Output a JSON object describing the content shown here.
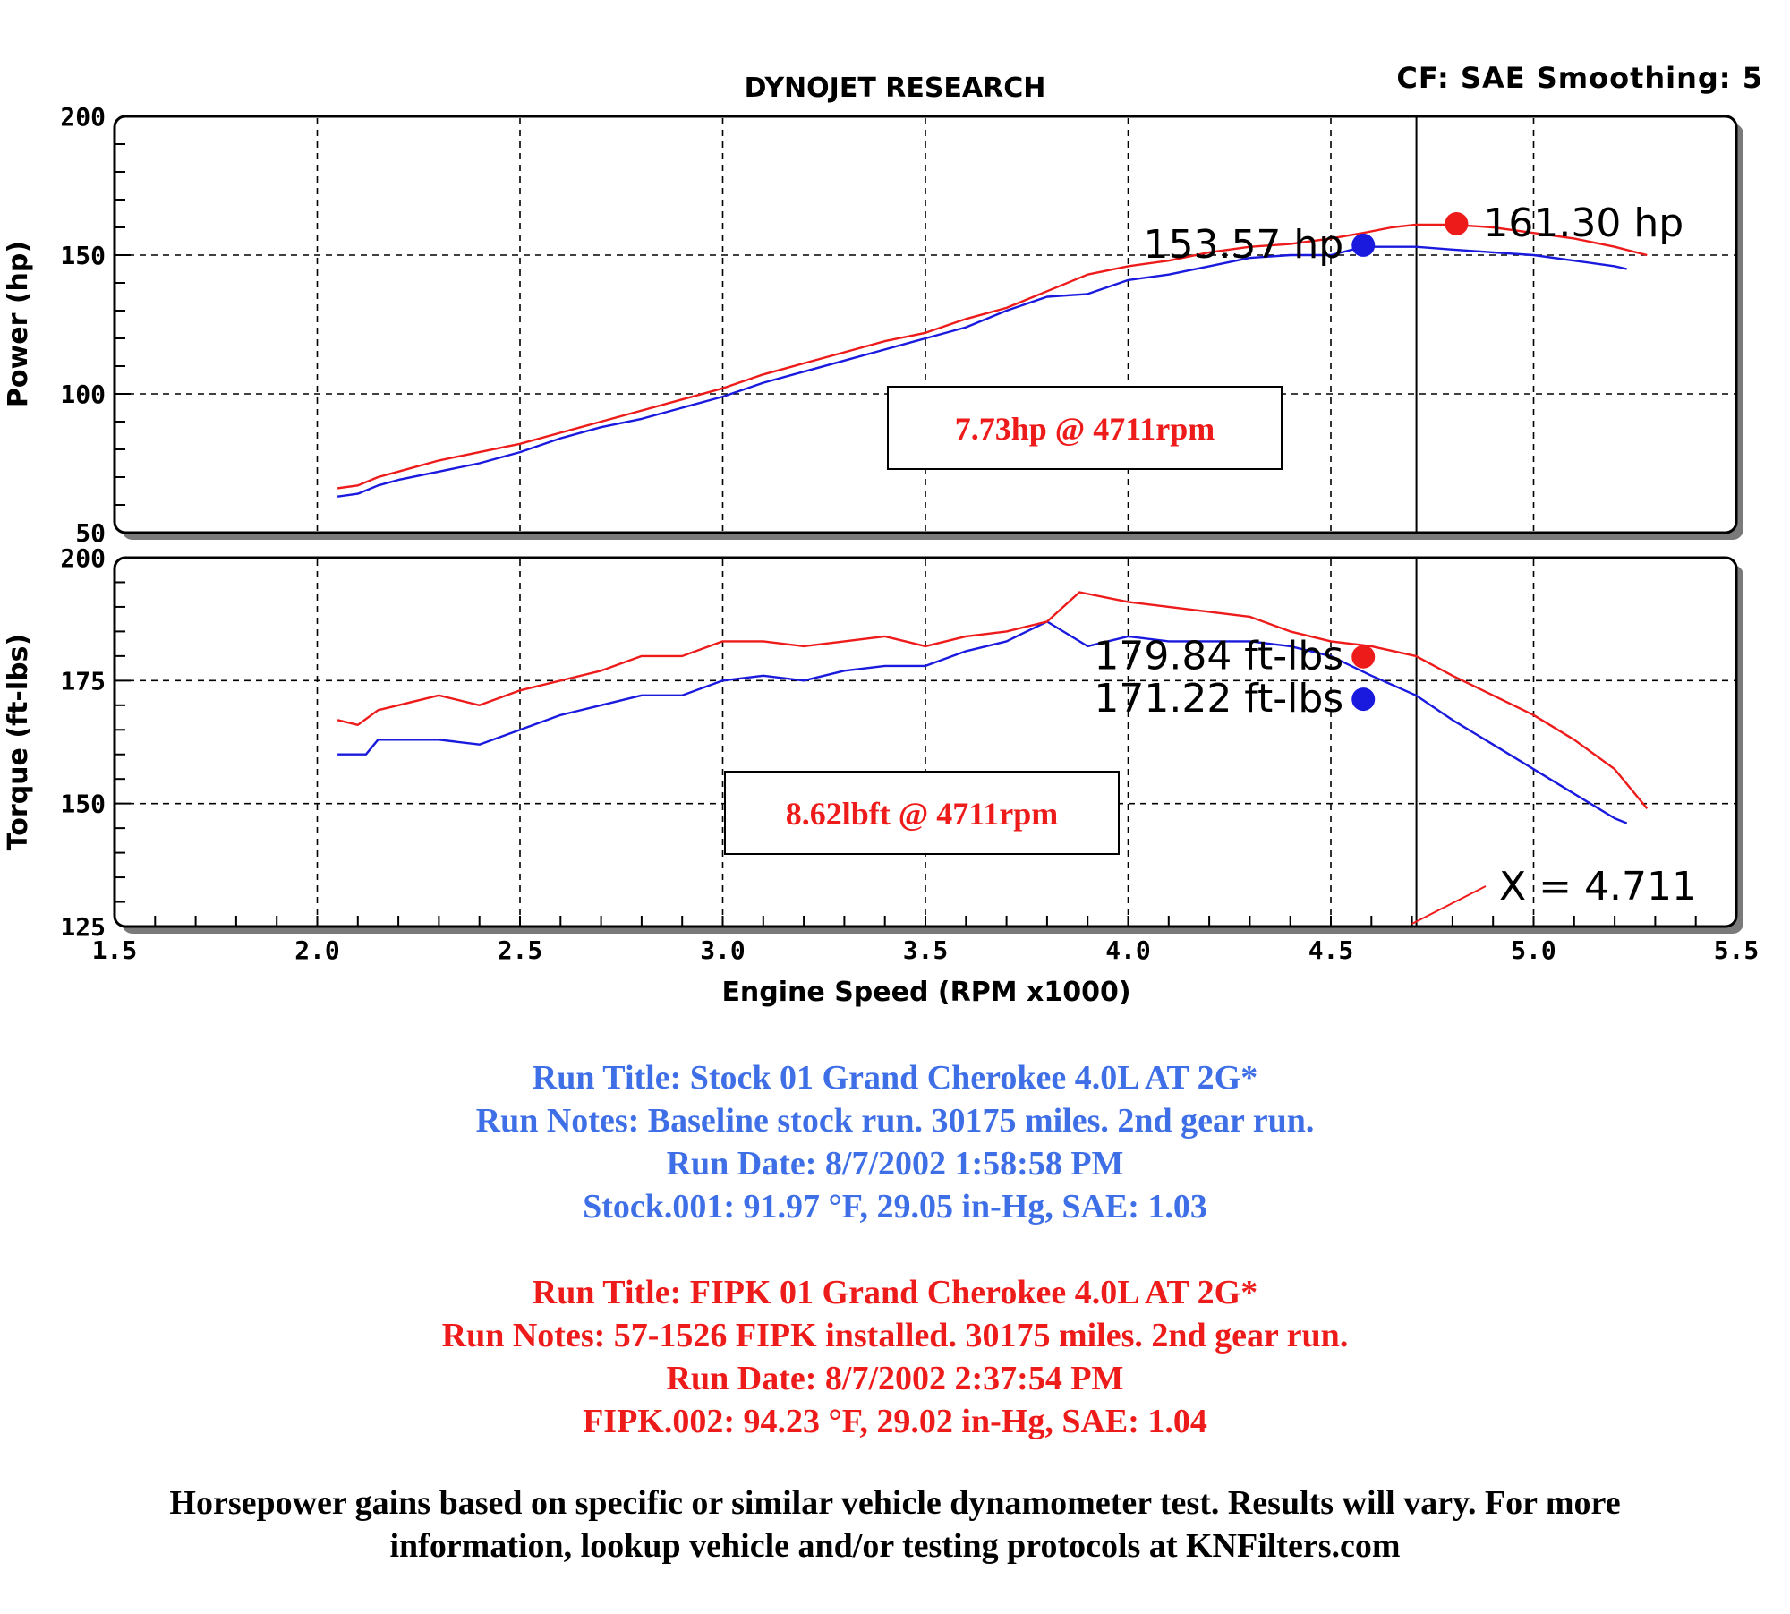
{
  "header": {
    "title": "DYNOJET RESEARCH",
    "cf_smoothing": "CF: SAE  Smoothing: 5"
  },
  "colors": {
    "stock": "#1a1adf",
    "fipk": "#ee1b1b",
    "blue_text": "#3f6fe6",
    "red_text": "#ee1b1b"
  },
  "chart_data": [
    {
      "type": "line",
      "name": "power",
      "ylabel": "Power (hp)",
      "xlim": [
        1.5,
        5.5
      ],
      "ylim": [
        50,
        200
      ],
      "yticks": [
        50,
        100,
        150,
        200
      ],
      "grid": true,
      "series": [
        {
          "name": "Stock",
          "color": "#1a1adf",
          "x": [
            2.05,
            2.1,
            2.15,
            2.2,
            2.3,
            2.4,
            2.5,
            2.6,
            2.7,
            2.8,
            2.9,
            3.0,
            3.1,
            3.2,
            3.3,
            3.4,
            3.5,
            3.6,
            3.7,
            3.8,
            3.9,
            4.0,
            4.1,
            4.2,
            4.3,
            4.4,
            4.5,
            4.58,
            4.65,
            4.71,
            4.8,
            4.9,
            5.0,
            5.1,
            5.2,
            5.23
          ],
          "y": [
            63,
            64,
            67,
            69,
            72,
            75,
            79,
            84,
            88,
            91,
            95,
            99,
            104,
            108,
            112,
            116,
            120,
            124,
            130,
            135,
            136,
            141,
            143,
            146,
            149,
            150,
            150,
            153,
            153,
            153,
            152,
            151,
            150,
            148,
            146,
            145
          ]
        },
        {
          "name": "FIPK",
          "color": "#ee1b1b",
          "x": [
            2.05,
            2.1,
            2.15,
            2.2,
            2.3,
            2.4,
            2.5,
            2.6,
            2.7,
            2.8,
            2.9,
            3.0,
            3.1,
            3.2,
            3.3,
            3.4,
            3.5,
            3.6,
            3.7,
            3.8,
            3.9,
            4.0,
            4.1,
            4.2,
            4.3,
            4.4,
            4.5,
            4.58,
            4.65,
            4.71,
            4.8,
            4.9,
            5.0,
            5.1,
            5.2,
            5.28
          ],
          "y": [
            66,
            67,
            70,
            72,
            76,
            79,
            82,
            86,
            90,
            94,
            98,
            102,
            107,
            111,
            115,
            119,
            122,
            127,
            131,
            137,
            143,
            146,
            148,
            151,
            153,
            154,
            156,
            158,
            160,
            161,
            161,
            160,
            158,
            156,
            153,
            150
          ]
        }
      ],
      "markers": [
        {
          "label": "153.57 hp",
          "x": 4.58,
          "y": 153.57,
          "color": "#1a1adf"
        },
        {
          "label": "161.30 hp",
          "x": 4.81,
          "y": 161.3,
          "color": "#ee1b1b"
        }
      ],
      "gain_box": "7.73hp @ 4711rpm"
    },
    {
      "type": "line",
      "name": "torque",
      "xlabel": "Engine Speed (RPM x1000)",
      "ylabel": "Torque (ft-lbs)",
      "xlim": [
        1.5,
        5.5
      ],
      "ylim": [
        125,
        200
      ],
      "xticks": [
        "1.5",
        "2.0",
        "2.5",
        "3.0",
        "3.5",
        "4.0",
        "4.5",
        "5.0",
        "5.5"
      ],
      "yticks": [
        125,
        150,
        175,
        200
      ],
      "grid": true,
      "series": [
        {
          "name": "Stock",
          "color": "#1a1adf",
          "x": [
            2.05,
            2.12,
            2.15,
            2.3,
            2.4,
            2.5,
            2.6,
            2.7,
            2.8,
            2.9,
            3.0,
            3.1,
            3.2,
            3.3,
            3.4,
            3.5,
            3.6,
            3.7,
            3.8,
            3.9,
            4.0,
            4.1,
            4.2,
            4.3,
            4.4,
            4.5,
            4.6,
            4.71,
            4.8,
            4.9,
            5.0,
            5.1,
            5.2,
            5.23
          ],
          "y": [
            160,
            160,
            163,
            163,
            162,
            165,
            168,
            170,
            172,
            172,
            175,
            176,
            175,
            177,
            178,
            178,
            181,
            183,
            187,
            182,
            184,
            183,
            183,
            183,
            182,
            180,
            176,
            172,
            167,
            162,
            157,
            152,
            147,
            146
          ]
        },
        {
          "name": "FIPK",
          "color": "#ee1b1b",
          "x": [
            2.05,
            2.1,
            2.15,
            2.2,
            2.3,
            2.4,
            2.5,
            2.6,
            2.7,
            2.8,
            2.9,
            3.0,
            3.1,
            3.2,
            3.3,
            3.4,
            3.5,
            3.6,
            3.7,
            3.8,
            3.88,
            4.0,
            4.1,
            4.2,
            4.3,
            4.4,
            4.5,
            4.6,
            4.71,
            4.8,
            4.9,
            5.0,
            5.1,
            5.2,
            5.28
          ],
          "y": [
            167,
            166,
            169,
            170,
            172,
            170,
            173,
            175,
            177,
            180,
            180,
            183,
            183,
            182,
            183,
            184,
            182,
            184,
            185,
            187,
            193,
            191,
            190,
            189,
            188,
            185,
            183,
            182,
            180,
            176,
            172,
            168,
            163,
            157,
            149
          ]
        }
      ],
      "markers": [
        {
          "label": "179.84 ft-lbs",
          "x": 4.58,
          "y": 179.84,
          "color": "#ee1b1b"
        },
        {
          "label": "171.22 ft-lbs",
          "x": 4.58,
          "y": 171.22,
          "color": "#1a1adf"
        }
      ],
      "gain_box": "8.62lbft @ 4711rpm",
      "cursor_x": 4.711,
      "cursor_label": "X = 4.711"
    }
  ],
  "runs": {
    "stock": {
      "title": "Run Title: Stock 01 Grand Cherokee 4.0L AT 2G*",
      "notes": "Run Notes: Baseline stock run. 30175 miles. 2nd gear run.",
      "date": "Run Date: 8/7/2002 1:58:58 PM",
      "conditions": "Stock.001: 91.97 °F, 29.05 in-Hg, SAE: 1.03"
    },
    "fipk": {
      "title": "Run Title: FIPK 01 Grand Cherokee 4.0L AT 2G*",
      "notes": "Run Notes: 57-1526 FIPK installed. 30175 miles. 2nd gear run.",
      "date": "Run Date: 8/7/2002 2:37:54 PM",
      "conditions": "FIPK.002: 94.23 °F, 29.02 in-Hg, SAE: 1.04"
    }
  },
  "disclaimer": {
    "line1": "Horsepower gains based on specific or similar vehicle dynamometer test. Results will vary. For more",
    "line2": "information, lookup vehicle and/or testing protocols at KNFilters.com"
  }
}
